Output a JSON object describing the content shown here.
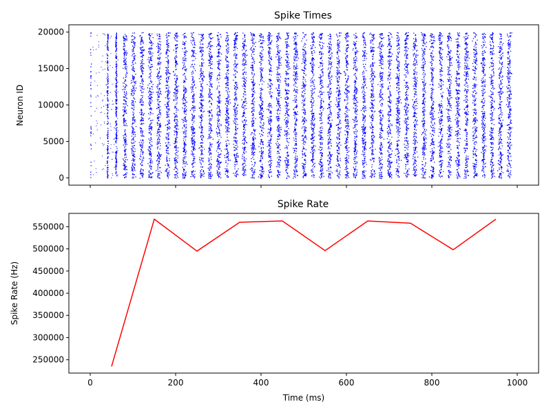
{
  "chart_data": [
    {
      "type": "scatter",
      "title": "Spike Times",
      "xlabel": "",
      "ylabel": "Neuron ID",
      "xlim": [
        -50,
        1050
      ],
      "ylim": [
        -1000,
        21000
      ],
      "x_ticks": [
        0,
        200,
        400,
        600,
        800,
        1000
      ],
      "x_tick_labels_shown": false,
      "y_ticks": [
        0,
        5000,
        10000,
        15000,
        20000
      ],
      "y_tick_labels": [
        "0",
        "5000",
        "10000",
        "15000",
        "20000"
      ],
      "marker_color": "#0000ff",
      "n_neurons": 20000,
      "burst_period_ms": 20,
      "burst_centers_ms": [
        0,
        40,
        60,
        80,
        100,
        120,
        140,
        160,
        180,
        200,
        220,
        240,
        260,
        280,
        300,
        320,
        340,
        360,
        380,
        400,
        420,
        440,
        460,
        480,
        500,
        520,
        540,
        560,
        580,
        600,
        620,
        640,
        660,
        680,
        700,
        720,
        740,
        760,
        780,
        800,
        820,
        840,
        860,
        880,
        900,
        920,
        940,
        960,
        980
      ],
      "time_range_ms": [
        0,
        1000
      ]
    },
    {
      "type": "line",
      "title": "Spike Rate",
      "xlabel": "Time (ms)",
      "ylabel": "Spike Rate (Hz)",
      "xlim": [
        -50,
        1050
      ],
      "ylim": [
        220000,
        580000
      ],
      "x_ticks": [
        0,
        200,
        400,
        600,
        800,
        1000
      ],
      "x_tick_labels": [
        "0",
        "200",
        "400",
        "600",
        "800",
        "1000"
      ],
      "y_ticks": [
        250000,
        300000,
        350000,
        400000,
        450000,
        500000,
        550000
      ],
      "y_tick_labels": [
        "250000",
        "300000",
        "350000",
        "400000",
        "450000",
        "500000",
        "550000"
      ],
      "line_color": "#ff0000",
      "x": [
        50,
        150,
        250,
        350,
        450,
        550,
        650,
        750,
        850,
        950
      ],
      "y": [
        235000,
        567000,
        495000,
        560000,
        563000,
        496000,
        563000,
        558000,
        498000,
        567000
      ]
    }
  ]
}
